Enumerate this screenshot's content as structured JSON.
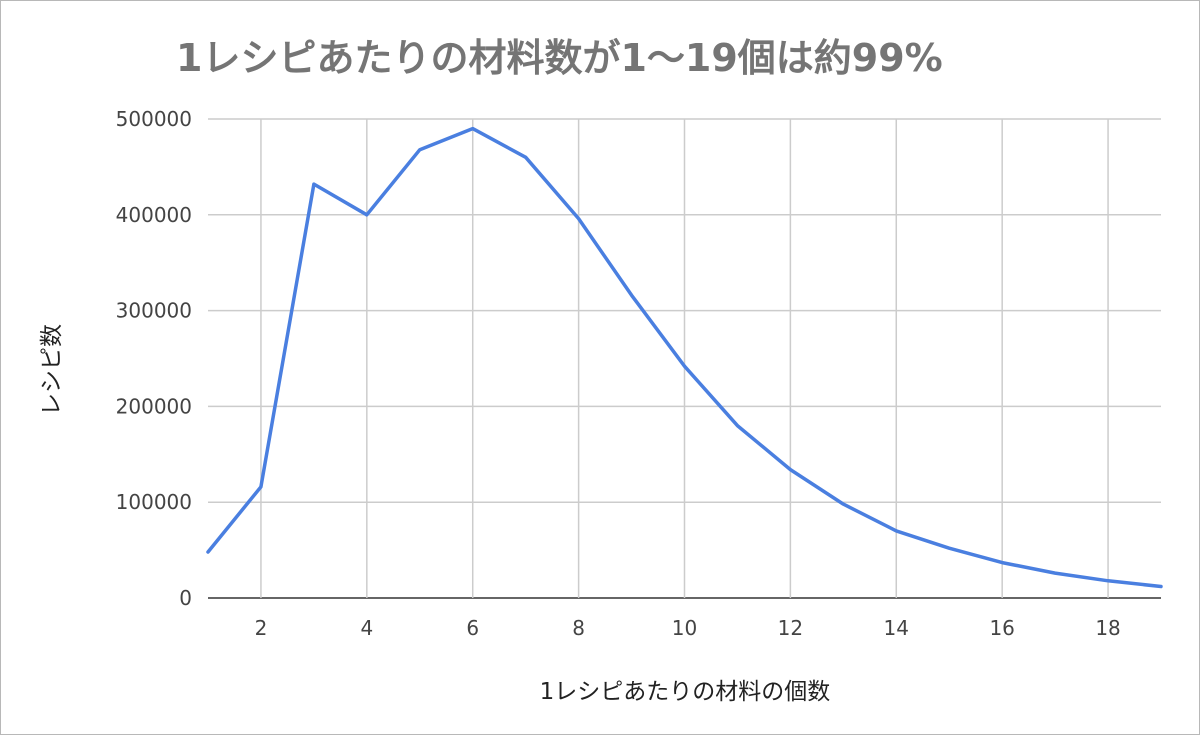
{
  "chart_data": {
    "type": "line",
    "title": "1レシピあたりの材料数が1〜19個は約99%",
    "xlabel": "1レシピあたりの材料の個数",
    "ylabel": "レシピ数",
    "xlim": [
      1,
      19
    ],
    "ylim": [
      0,
      500000
    ],
    "x_ticks": [
      2,
      4,
      6,
      8,
      10,
      12,
      14,
      16,
      18
    ],
    "y_ticks": [
      0,
      100000,
      200000,
      300000,
      400000,
      500000
    ],
    "grid": true,
    "legend": "none",
    "line_color": "#4a7fe0",
    "series": [
      {
        "x": [
          1,
          2,
          3,
          4,
          5,
          6,
          7,
          8,
          9,
          10,
          11,
          12,
          13,
          14,
          15,
          16,
          17,
          18,
          19
        ],
        "values": [
          48000,
          116000,
          432000,
          400000,
          468000,
          490000,
          460000,
          396000,
          316000,
          242000,
          180000,
          134000,
          98000,
          70000,
          52000,
          37000,
          26000,
          18000,
          12000
        ]
      }
    ]
  }
}
